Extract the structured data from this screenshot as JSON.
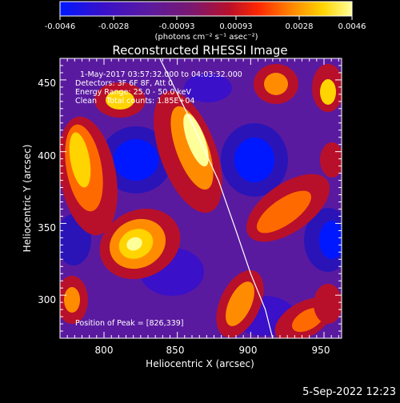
{
  "colorbar": {
    "ticks": [
      "-0.0046",
      "-0.0028",
      "-0.00093",
      "0.00093",
      "0.0028",
      "0.0046"
    ],
    "units_label": "(photons cm⁻² s⁻¹ asec⁻²)",
    "range": [
      -0.0046,
      0.0046
    ],
    "colors": [
      "#0018ff",
      "#3a10c8",
      "#5a1aa0",
      "#7a1870",
      "#b8102a",
      "#ff2800",
      "#ff8c00",
      "#ffd400",
      "#ffff9a"
    ]
  },
  "chart_data": {
    "type": "heatmap",
    "title": "Reconstructed RHESSI Image",
    "xlabel": "Heliocentric X (arcsec)",
    "ylabel": "Heliocentric Y (arcsec)",
    "xlim": [
      770,
      962
    ],
    "ylim": [
      270,
      465
    ],
    "x_ticks": [
      "800",
      "850",
      "900",
      "950"
    ],
    "y_ticks": [
      "300",
      "350",
      "400",
      "450"
    ],
    "x_tick_values": [
      800,
      850,
      900,
      950
    ],
    "y_tick_values": [
      300,
      350,
      400,
      450
    ],
    "annotations": [
      "1-May-2017 03:57:32.000 to 04:03:32.000",
      "Detectors: 3F 6F 8F, Att 0",
      "Energy Range: 25.0 - 50.0 keV",
      "Clean    Total counts: 1.85E+04"
    ],
    "peak_label": "Position of Peak = [826,339]",
    "peak": [
      826,
      339
    ],
    "limb_curve_points": [
      [
        838,
        465
      ],
      [
        860,
        420
      ],
      [
        878,
        380
      ],
      [
        890,
        345
      ],
      [
        900,
        315
      ],
      [
        910,
        290
      ],
      [
        915,
        270
      ]
    ]
  },
  "footer": {
    "date_stamp": "5-Sep-2022 12:23"
  }
}
